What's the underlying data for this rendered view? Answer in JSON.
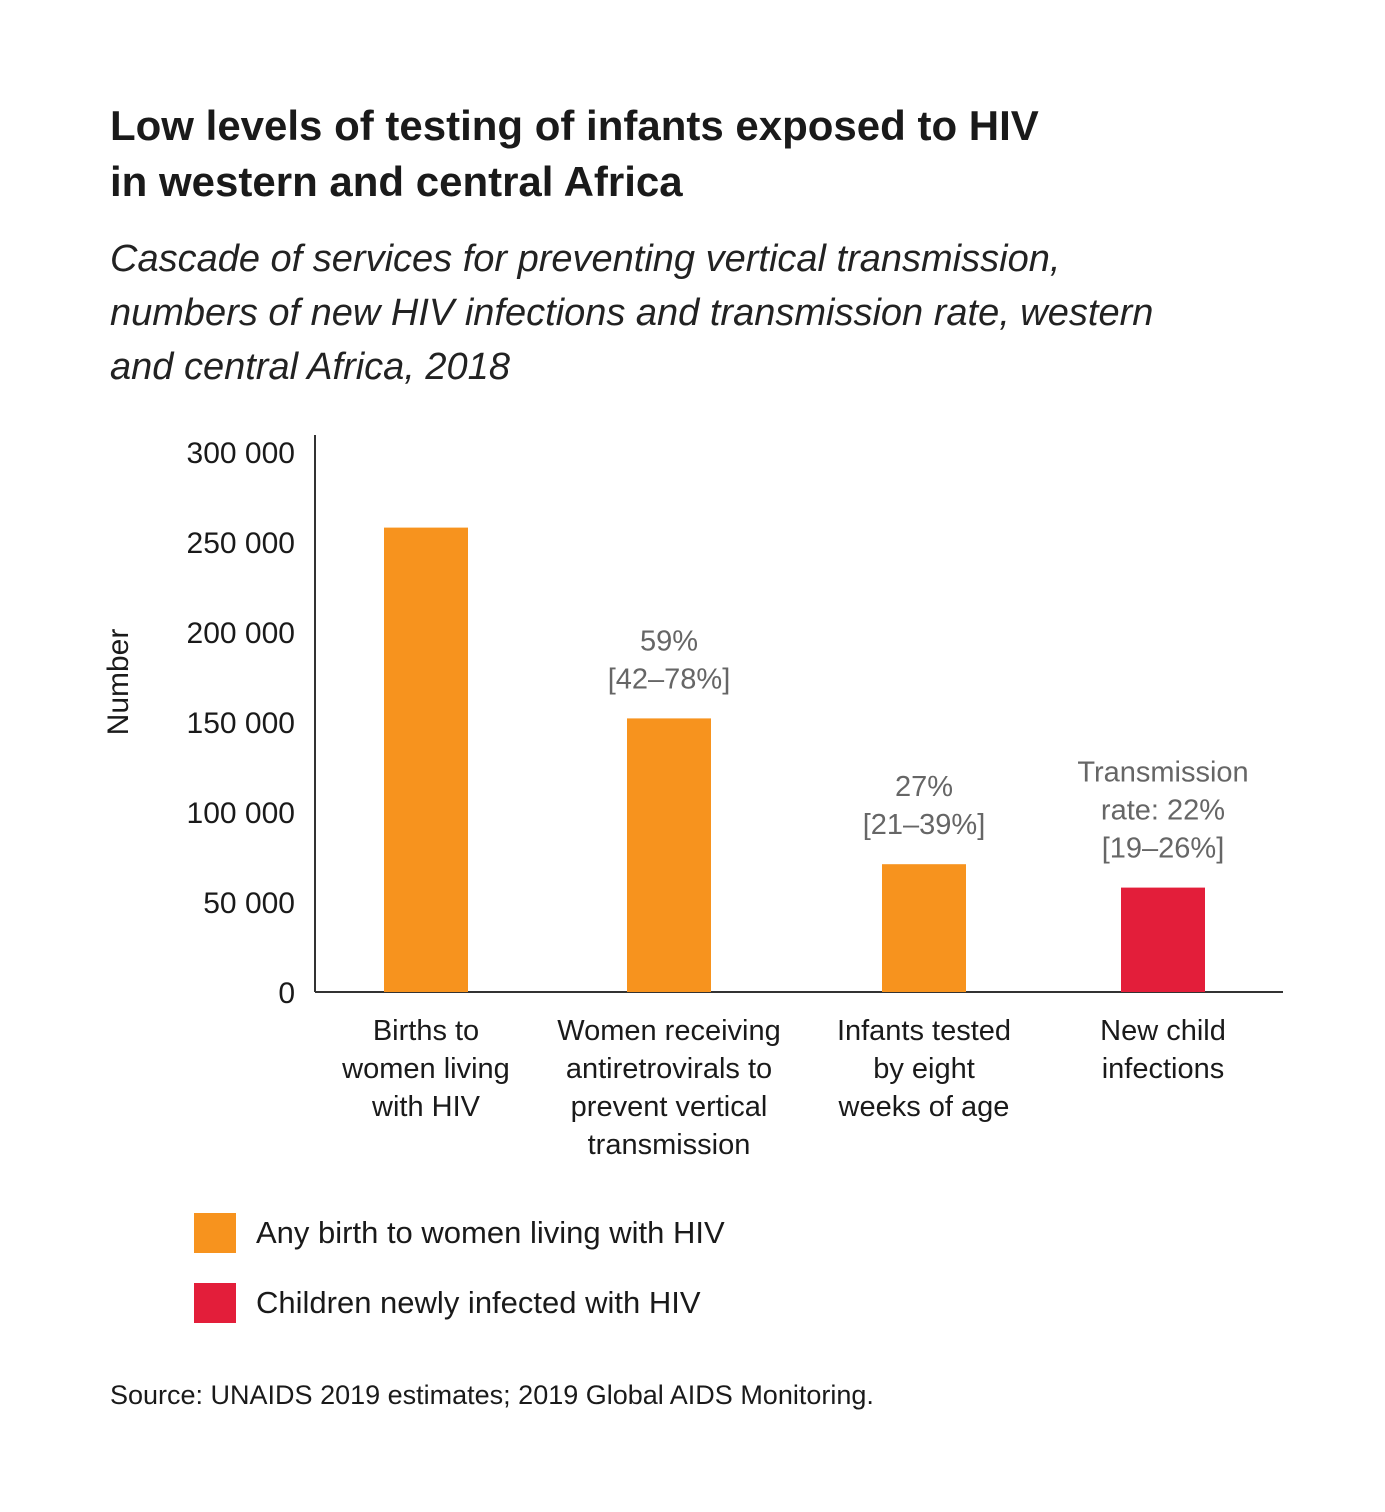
{
  "title_lines": [
    "Low levels of testing of infants exposed to HIV",
    "in western and central Africa"
  ],
  "subtitle_lines": [
    "Cascade of services for preventing vertical transmission,",
    "numbers of new HIV infections and transmission rate, western",
    "and central Africa, 2018"
  ],
  "chart_data": {
    "type": "bar",
    "ylabel": "Number",
    "xlabel": "",
    "ylim": [
      0,
      300000
    ],
    "yticks": [
      0,
      50000,
      100000,
      150000,
      200000,
      250000,
      300000
    ],
    "ytick_labels": [
      "0",
      "50 000",
      "100 000",
      "150 000",
      "200 000",
      "250 000",
      "300 000"
    ],
    "categories": [
      [
        "Births to",
        "women living",
        "with HIV"
      ],
      [
        "Women receiving",
        "antiretrovirals to",
        "prevent vertical",
        "transmission"
      ],
      [
        "Infants tested",
        "by eight",
        "weeks of age"
      ],
      [
        "New child",
        "infections"
      ]
    ],
    "values": [
      258000,
      152000,
      71000,
      58000
    ],
    "bar_colors": [
      "#F7931E",
      "#F7931E",
      "#F7931E",
      "#E31E3A"
    ],
    "annotations": [
      [],
      [
        "59%",
        "[42–78%]"
      ],
      [
        "27%",
        "[21–39%]"
      ],
      [
        "Transmission",
        "rate: 22%",
        "[19–26%]"
      ]
    ],
    "grid": false,
    "legend_position": "bottom-left",
    "legend": [
      {
        "label": "Any birth to women living with HIV",
        "color": "#F7931E"
      },
      {
        "label": "Children newly infected with HIV",
        "color": "#E31E3A"
      }
    ]
  },
  "source": "Source: UNAIDS 2019 estimates; 2019 Global AIDS Monitoring."
}
